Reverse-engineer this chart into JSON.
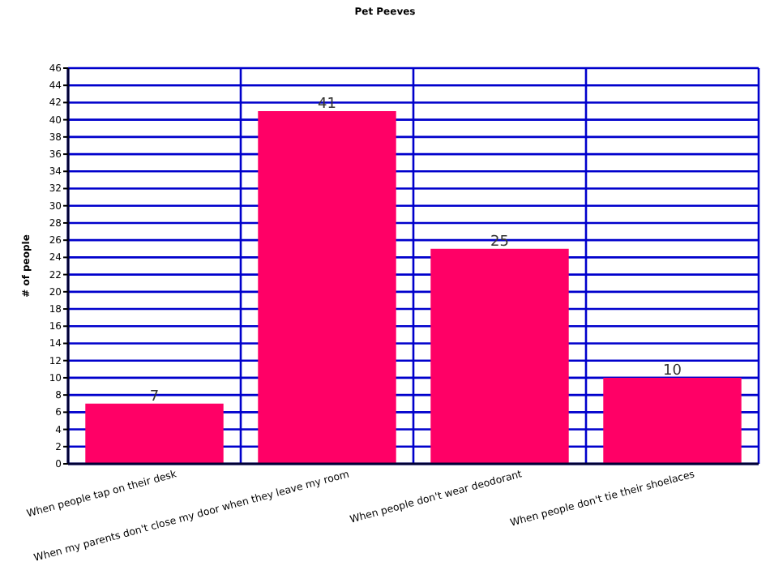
{
  "chart_data": {
    "type": "bar",
    "title": "Pet Peeves",
    "ylabel": "# of people",
    "categories": [
      "When people tap on their desk",
      "When my parents don't close my door when they leave my room",
      "When people don't wear deodorant",
      "When people don't tie their shoelaces"
    ],
    "values": [
      7,
      41,
      25,
      10
    ],
    "color": "#ff0066",
    "ylim": [
      0,
      46
    ],
    "yticks": [
      0,
      2,
      4,
      6,
      8,
      10,
      12,
      14,
      16,
      18,
      20,
      22,
      24,
      26,
      28,
      30,
      32,
      34,
      36,
      38,
      40,
      42,
      44,
      46
    ],
    "grid": true,
    "data_labels": true
  }
}
